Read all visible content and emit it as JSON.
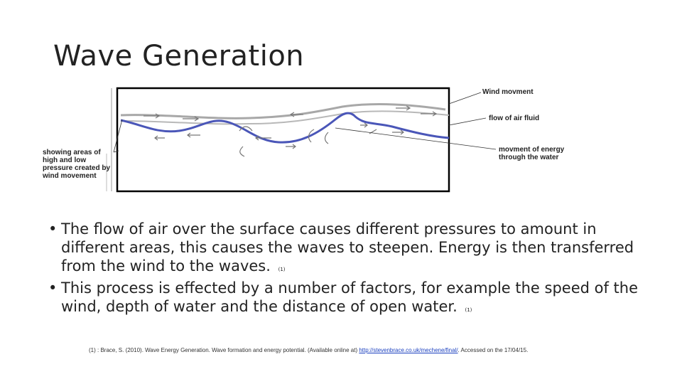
{
  "slide": {
    "title": "Wave Generation"
  },
  "figure": {
    "labels": {
      "wind_movement": "Wind movment",
      "flow_of_air": "flow of air fluid",
      "energy": "movment of energy through the water",
      "pressure": "showing areas of high and low pressure created by wind movement"
    }
  },
  "bullets": [
    {
      "text": "The flow of air over the surface causes different pressures to amount in different areas, this causes the waves to steepen. Energy is then transferred from the wind to the waves.",
      "ref": "(1)"
    },
    {
      "text": "This process is effected by a number of factors, for example the speed of the wind, depth of water and the distance of open water.",
      "ref": "(1)"
    }
  ],
  "footnote": {
    "prefix": "(1) : Brace, S. (2010). Wave Energy Generation. Wave formation and energy potential. (Available online at) ",
    "link": "http://stevenbrace.co.uk/mechene/final/",
    "suffix": ". Accessed on the 17/04/15."
  },
  "colors": {
    "wave_line": "#4a56b8",
    "air_flow": "#a8a8a8",
    "frame": "#000000"
  }
}
